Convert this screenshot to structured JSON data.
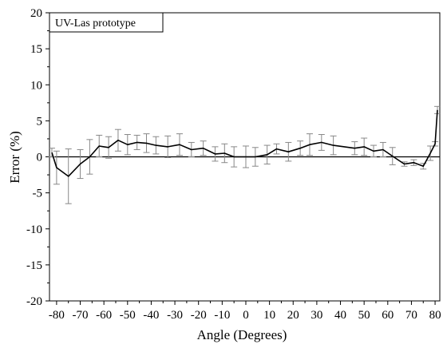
{
  "chart_data": {
    "type": "line",
    "xlabel": "Angle (Degrees)",
    "ylabel": "Error (%)",
    "xlim": [
      -83,
      82
    ],
    "ylim": [
      -20,
      20
    ],
    "x_ticks": [
      -80,
      -70,
      -60,
      -50,
      -40,
      -30,
      -20,
      -10,
      0,
      10,
      20,
      30,
      40,
      50,
      60,
      70,
      80
    ],
    "y_ticks": [
      -20,
      -15,
      -10,
      -5,
      0,
      5,
      10,
      15,
      20
    ],
    "reference_line_y": 0,
    "grid": false,
    "legend_position": "top-left",
    "series": [
      {
        "name": "UV-Las prototype",
        "color": "#000000",
        "error_bar_color": "#888888",
        "points": [
          {
            "x": -82,
            "y": 0.6,
            "err": 0.6
          },
          {
            "x": -80,
            "y": -1.5,
            "err": 2.3
          },
          {
            "x": -75,
            "y": -2.7,
            "err": 3.8
          },
          {
            "x": -70,
            "y": -1.0,
            "err": 2.0
          },
          {
            "x": -66,
            "y": 0.0,
            "err": 2.4
          },
          {
            "x": -62,
            "y": 1.5,
            "err": 1.5
          },
          {
            "x": -58,
            "y": 1.3,
            "err": 1.5
          },
          {
            "x": -54,
            "y": 2.3,
            "err": 1.5
          },
          {
            "x": -50,
            "y": 1.7,
            "err": 1.4
          },
          {
            "x": -46,
            "y": 2.0,
            "err": 1.0
          },
          {
            "x": -42,
            "y": 1.9,
            "err": 1.3
          },
          {
            "x": -38,
            "y": 1.6,
            "err": 1.2
          },
          {
            "x": -33,
            "y": 1.4,
            "err": 1.5
          },
          {
            "x": -28,
            "y": 1.7,
            "err": 1.5
          },
          {
            "x": -23,
            "y": 1.0,
            "err": 1.0
          },
          {
            "x": -18,
            "y": 1.2,
            "err": 1.0
          },
          {
            "x": -13,
            "y": 0.4,
            "err": 1.0
          },
          {
            "x": -9,
            "y": 0.5,
            "err": 1.3
          },
          {
            "x": -5,
            "y": 0.0,
            "err": 1.4
          },
          {
            "x": 0,
            "y": 0.0,
            "err": 1.5
          },
          {
            "x": 4,
            "y": 0.0,
            "err": 1.3
          },
          {
            "x": 9,
            "y": 0.3,
            "err": 1.3
          },
          {
            "x": 13,
            "y": 1.1,
            "err": 0.7
          },
          {
            "x": 18,
            "y": 0.7,
            "err": 1.3
          },
          {
            "x": 23,
            "y": 1.2,
            "err": 1.0
          },
          {
            "x": 27,
            "y": 1.7,
            "err": 1.5
          },
          {
            "x": 32,
            "y": 2.0,
            "err": 1.1
          },
          {
            "x": 37,
            "y": 1.6,
            "err": 1.3
          },
          {
            "x": 46,
            "y": 1.2,
            "err": 0.9
          },
          {
            "x": 50,
            "y": 1.4,
            "err": 1.2
          },
          {
            "x": 54,
            "y": 0.8,
            "err": 0.8
          },
          {
            "x": 58,
            "y": 1.0,
            "err": 1.0
          },
          {
            "x": 62,
            "y": 0.1,
            "err": 1.2
          },
          {
            "x": 67,
            "y": -1.0,
            "err": 0.3
          },
          {
            "x": 71,
            "y": -0.8,
            "err": 0.4
          },
          {
            "x": 75,
            "y": -1.3,
            "err": 0.4
          },
          {
            "x": 78,
            "y": 0.5,
            "err": 1.0
          },
          {
            "x": 80,
            "y": 1.8,
            "err": 0.3
          },
          {
            "x": 81,
            "y": 6.5,
            "err": 0.5
          }
        ]
      }
    ]
  }
}
